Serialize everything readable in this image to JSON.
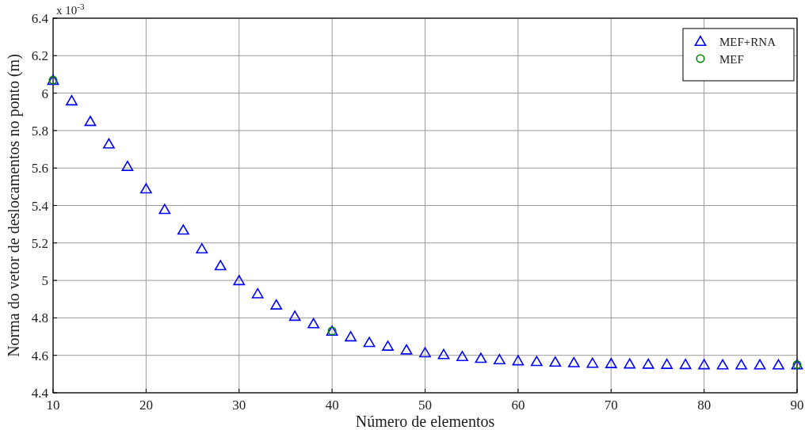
{
  "chart_data": {
    "type": "scatter",
    "xlabel": "Número de elementos",
    "ylabel": "Norma do vetor de deslocamentos no ponto (m)",
    "annotations": [
      "x 10$^{-3}$"
    ],
    "xlim": [
      10,
      90
    ],
    "xticks": [
      10,
      20,
      30,
      40,
      50,
      60,
      70,
      80,
      90
    ],
    "ylim": [
      4.4,
      6.4
    ],
    "yticks": [
      4.4,
      4.6,
      4.8,
      5,
      5.2,
      5.4,
      5.6,
      5.8,
      6,
      6.2,
      6.4
    ],
    "grid": true,
    "legend": "top right",
    "series": [
      {
        "name": "MEF+RNA",
        "color": "#0000ff",
        "marker": "triangle",
        "x": [
          10,
          12,
          14,
          16,
          18,
          20,
          22,
          24,
          26,
          28,
          30,
          32,
          34,
          36,
          38,
          40,
          42,
          44,
          46,
          48,
          50,
          52,
          54,
          56,
          58,
          60,
          62,
          64,
          66,
          68,
          70,
          72,
          74,
          76,
          78,
          80,
          82,
          84,
          86,
          88,
          90
        ],
        "values": [
          6.07,
          5.96,
          5.85,
          5.73,
          5.61,
          5.49,
          5.38,
          5.27,
          5.17,
          5.08,
          5.0,
          4.93,
          4.87,
          4.81,
          4.77,
          4.73,
          4.7,
          4.67,
          4.65,
          4.63,
          4.615,
          4.605,
          4.595,
          4.585,
          4.578,
          4.572,
          4.568,
          4.565,
          4.562,
          4.559,
          4.557,
          4.555,
          4.554,
          4.553,
          4.552,
          4.551,
          4.55,
          4.55,
          4.55,
          4.55,
          4.55
        ]
      },
      {
        "name": "MEF",
        "color": "#008000",
        "marker": "circle",
        "x": [
          10,
          40,
          90
        ],
        "values": [
          6.07,
          4.73,
          4.55
        ]
      }
    ]
  }
}
